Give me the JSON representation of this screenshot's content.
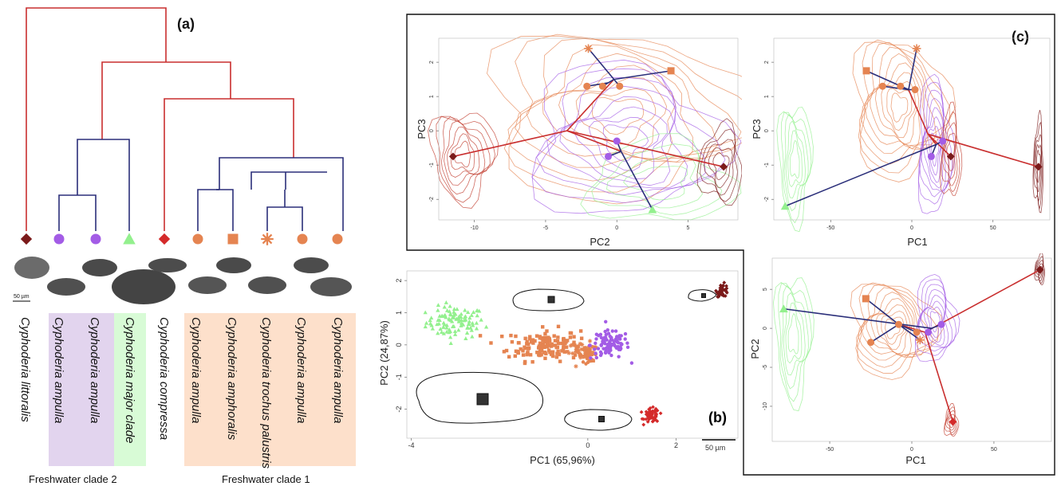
{
  "panel_labels": {
    "a": "(a)",
    "b": "(b)",
    "c": "(c)"
  },
  "colors": {
    "red_branch": "#c92f2f",
    "blue_branch": "#2b2f7a",
    "dark_red": "#7b1a1a",
    "red": "#d42a2a",
    "purple": "#a35ce6",
    "green": "#93f08e",
    "orange": "#e58451",
    "clade2_band": "#e2d4ee",
    "major_band": "#d8fbd6",
    "clade1_band": "#fde0cb"
  },
  "tree": {
    "tips": [
      {
        "species": "Cyphoderia littoralis",
        "symbol": "diamond",
        "color": "#7b1a1a"
      },
      {
        "species": "Cyphoderia ampulla",
        "symbol": "circle",
        "color": "#a35ce6"
      },
      {
        "species": "Cyphoderia ampulla",
        "symbol": "circle",
        "color": "#a35ce6"
      },
      {
        "species": "Cyphoderia major clade",
        "symbol": "triangle",
        "color": "#93f08e"
      },
      {
        "species": "Cyphoderia compressa",
        "symbol": "diamond",
        "color": "#d42a2a"
      },
      {
        "species": "Cyphoderia ampulla",
        "symbol": "circle",
        "color": "#e58451"
      },
      {
        "species": "Cyphoderia amphoralis",
        "symbol": "square",
        "color": "#e58451"
      },
      {
        "species": "Cyphoderia trochus palustris",
        "symbol": "asterisk",
        "color": "#e58451"
      },
      {
        "species": "Cyphoderia ampulla",
        "symbol": "circle",
        "color": "#e58451"
      },
      {
        "species": "Cyphoderia ampulla",
        "symbol": "circle",
        "color": "#e58451"
      }
    ],
    "scale_bar": "50 µm"
  },
  "clades": {
    "clade2": "Freshwater clade 2",
    "clade1": "Freshwater clade 1"
  },
  "chart_data": [
    {
      "type": "scatter",
      "panel": "(b)",
      "xlabel": "PC1 (65,96%)",
      "ylabel": "PC2 (24,87%)",
      "xlim": [
        -4.1,
        3.4
      ],
      "ylim": [
        -2.9,
        2.3
      ],
      "xticks": [
        -4,
        0,
        2
      ],
      "yticks": [
        -2,
        -1,
        0,
        1,
        2
      ],
      "scale_bar": "50 µm",
      "series": [
        {
          "color": "#93f08e",
          "marker": "triangle",
          "center": [
            -3.0,
            0.7
          ],
          "spread": [
            0.6,
            0.45
          ],
          "n": 100
        },
        {
          "color": "#e58451",
          "marker": "square",
          "center": [
            -1.0,
            0.0
          ],
          "spread": [
            0.75,
            0.45
          ],
          "n": 150
        },
        {
          "color": "#e58451",
          "marker": "asterisk",
          "center": [
            -0.1,
            -0.2
          ],
          "spread": [
            0.3,
            0.25
          ],
          "n": 30
        },
        {
          "color": "#e58451",
          "marker": "circle",
          "center": [
            0.0,
            -0.3
          ],
          "spread": [
            0.2,
            0.2
          ],
          "n": 30
        },
        {
          "color": "#a35ce6",
          "marker": "circle",
          "center": [
            0.5,
            0.0
          ],
          "spread": [
            0.4,
            0.4
          ],
          "n": 100
        },
        {
          "color": "#d42a2a",
          "marker": "diamond",
          "center": [
            1.45,
            -2.2
          ],
          "spread": [
            0.15,
            0.2
          ],
          "n": 60
        },
        {
          "color": "#7b1a1a",
          "marker": "diamond",
          "center": [
            3.05,
            1.7
          ],
          "spread": [
            0.12,
            0.18
          ],
          "n": 40
        }
      ]
    },
    {
      "type": "line",
      "panel": "(c) top-left",
      "xlabel": "PC2",
      "ylabel": "PC3",
      "xlim": [
        -12.5,
        8.5
      ],
      "ylim": [
        -2.6,
        2.7
      ],
      "xticks": [
        -10,
        -5,
        0,
        5
      ],
      "yticks": [
        2,
        1,
        0,
        -1,
        -2
      ],
      "nodes": [
        {
          "id": "root",
          "x": -3.5,
          "y": 0.0
        },
        {
          "id": "n1",
          "x": 0.0,
          "y": 0.3
        },
        {
          "id": "n2",
          "x": 0.0,
          "y": 1.2
        },
        {
          "id": "n3",
          "x": -0.2,
          "y": 1.5
        },
        {
          "id": "n4",
          "x": 0.3,
          "y": -0.6
        },
        {
          "id": "n5",
          "x": -0.6,
          "y": 1.4
        }
      ],
      "tips": [
        {
          "x": -11.5,
          "y": -0.75,
          "marker": "diamond",
          "color": "#7b1a1a"
        },
        {
          "x": 7.5,
          "y": -1.05,
          "marker": "diamond",
          "color": "#7b1a1a"
        },
        {
          "x": 2.5,
          "y": -2.3,
          "marker": "triangle",
          "color": "#93f08e"
        },
        {
          "x": 0.0,
          "y": -0.3,
          "marker": "circle",
          "color": "#a35ce6"
        },
        {
          "x": -0.6,
          "y": -0.75,
          "marker": "circle",
          "color": "#a35ce6"
        },
        {
          "x": -2.0,
          "y": 2.4,
          "marker": "asterisk",
          "color": "#e58451"
        },
        {
          "x": 3.8,
          "y": 1.75,
          "marker": "square",
          "color": "#e58451"
        },
        {
          "x": -2.1,
          "y": 1.3,
          "marker": "circle",
          "color": "#e58451"
        },
        {
          "x": -1.0,
          "y": 1.3,
          "marker": "circle",
          "color": "#e58451"
        },
        {
          "x": 0.2,
          "y": 1.3,
          "marker": "circle",
          "color": "#e58451"
        }
      ],
      "edges": [
        {
          "from": [
            -3.5,
            0.0
          ],
          "to": [
            -11.5,
            -0.75
          ],
          "color": "red"
        },
        {
          "from": [
            -3.5,
            0.0
          ],
          "to": [
            7.5,
            -1.05
          ],
          "color": "red"
        },
        {
          "from": [
            -3.5,
            0.0
          ],
          "to": [
            -0.2,
            1.5
          ],
          "color": "red"
        },
        {
          "from": [
            -3.5,
            0.0
          ],
          "to": [
            0.3,
            -0.6
          ],
          "color": "red"
        },
        {
          "from": [
            0.3,
            -0.6
          ],
          "to": [
            2.5,
            -2.3
          ],
          "color": "blue"
        },
        {
          "from": [
            0.3,
            -0.6
          ],
          "to": [
            0.0,
            -0.3
          ],
          "color": "blue"
        },
        {
          "from": [
            0.3,
            -0.6
          ],
          "to": [
            -0.6,
            -0.75
          ],
          "color": "blue"
        },
        {
          "from": [
            -0.2,
            1.5
          ],
          "to": [
            -2.0,
            2.4
          ],
          "color": "blue"
        },
        {
          "from": [
            -0.2,
            1.5
          ],
          "to": [
            3.8,
            1.75
          ],
          "color": "blue"
        },
        {
          "from": [
            -0.2,
            1.5
          ],
          "to": [
            -0.6,
            1.4
          ],
          "color": "blue"
        },
        {
          "from": [
            -0.6,
            1.4
          ],
          "to": [
            -2.1,
            1.3
          ],
          "color": "blue"
        },
        {
          "from": [
            -0.6,
            1.4
          ],
          "to": [
            -1.0,
            1.3
          ],
          "color": "blue"
        },
        {
          "from": [
            -0.2,
            1.5
          ],
          "to": [
            0.2,
            1.3
          ],
          "color": "blue"
        }
      ]
    },
    {
      "type": "line",
      "panel": "(c) top-right",
      "xlabel": "PC1",
      "ylabel": "PC3",
      "xlim": [
        -85,
        85
      ],
      "ylim": [
        -2.6,
        2.7
      ],
      "xticks": [
        -50,
        0,
        50
      ],
      "yticks": [
        2,
        1,
        0,
        -1,
        -2
      ],
      "tips": [
        {
          "x": -78,
          "y": -2.2,
          "marker": "triangle",
          "color": "#93f08e"
        },
        {
          "x": 78,
          "y": -1.05,
          "marker": "diamond",
          "color": "#7b1a1a"
        },
        {
          "x": 24,
          "y": -0.75,
          "marker": "diamond",
          "color": "#7b1a1a"
        },
        {
          "x": 19,
          "y": -0.3,
          "marker": "circle",
          "color": "#a35ce6"
        },
        {
          "x": 12,
          "y": -0.75,
          "marker": "circle",
          "color": "#a35ce6"
        },
        {
          "x": 3,
          "y": 2.4,
          "marker": "asterisk",
          "color": "#e58451"
        },
        {
          "x": -28,
          "y": 1.75,
          "marker": "square",
          "color": "#e58451"
        },
        {
          "x": -18,
          "y": 1.3,
          "marker": "circle",
          "color": "#e58451"
        },
        {
          "x": -7,
          "y": 1.3,
          "marker": "circle",
          "color": "#e58451"
        },
        {
          "x": 2,
          "y": 1.2,
          "marker": "circle",
          "color": "#e58451"
        }
      ],
      "edges": [
        {
          "from": [
            10,
            -0.1
          ],
          "to": [
            78,
            -1.05
          ],
          "color": "red"
        },
        {
          "from": [
            10,
            -0.1
          ],
          "to": [
            24,
            -0.75
          ],
          "color": "red"
        },
        {
          "from": [
            10,
            -0.1
          ],
          "to": [
            -2,
            1.2
          ],
          "color": "red"
        },
        {
          "from": [
            10,
            -0.1
          ],
          "to": [
            15,
            -0.4
          ],
          "color": "red"
        },
        {
          "from": [
            15,
            -0.4
          ],
          "to": [
            -78,
            -2.2
          ],
          "color": "blue"
        },
        {
          "from": [
            15,
            -0.4
          ],
          "to": [
            19,
            -0.3
          ],
          "color": "blue"
        },
        {
          "from": [
            15,
            -0.4
          ],
          "to": [
            12,
            -0.75
          ],
          "color": "blue"
        },
        {
          "from": [
            -2,
            1.2
          ],
          "to": [
            3,
            2.4
          ],
          "color": "blue"
        },
        {
          "from": [
            -2,
            1.2
          ],
          "to": [
            -28,
            1.75
          ],
          "color": "blue"
        },
        {
          "from": [
            -2,
            1.2
          ],
          "to": [
            -18,
            1.3
          ],
          "color": "blue"
        },
        {
          "from": [
            -2,
            1.2
          ],
          "to": [
            -7,
            1.3
          ],
          "color": "blue"
        },
        {
          "from": [
            -2,
            1.2
          ],
          "to": [
            2,
            1.2
          ],
          "color": "blue"
        }
      ]
    },
    {
      "type": "line",
      "panel": "(c) bottom",
      "xlabel": "PC1",
      "ylabel": "PC2",
      "xlim": [
        -85,
        85
      ],
      "ylim": [
        -14.5,
        9
      ],
      "xticks": [
        -50,
        0,
        50
      ],
      "yticks": [
        5,
        0,
        -5,
        -10
      ],
      "tips": [
        {
          "x": -78,
          "y": 2.5,
          "marker": "triangle",
          "color": "#93f08e"
        },
        {
          "x": 78,
          "y": 7.5,
          "marker": "diamond",
          "color": "#7b1a1a"
        },
        {
          "x": 25,
          "y": -12,
          "marker": "diamond",
          "color": "#d42a2a"
        },
        {
          "x": 18,
          "y": 0.5,
          "marker": "circle",
          "color": "#a35ce6"
        },
        {
          "x": 10,
          "y": -0.5,
          "marker": "circle",
          "color": "#a35ce6"
        },
        {
          "x": -28,
          "y": 3.8,
          "marker": "square",
          "color": "#e58451"
        },
        {
          "x": -25,
          "y": -1.8,
          "marker": "circle",
          "color": "#e58451"
        },
        {
          "x": -8,
          "y": 0.5,
          "marker": "circle",
          "color": "#e58451"
        },
        {
          "x": 3,
          "y": -0.5,
          "marker": "circle",
          "color": "#e58451"
        },
        {
          "x": 5,
          "y": -1.5,
          "marker": "asterisk",
          "color": "#e58451"
        }
      ],
      "edges": [
        {
          "from": [
            8,
            -0.5
          ],
          "to": [
            78,
            7.5
          ],
          "color": "red"
        },
        {
          "from": [
            8,
            -0.5
          ],
          "to": [
            25,
            -12
          ],
          "color": "red"
        },
        {
          "from": [
            8,
            -0.5
          ],
          "to": [
            -8,
            0.5
          ],
          "color": "red"
        },
        {
          "from": [
            8,
            -0.5
          ],
          "to": [
            12,
            0.0
          ],
          "color": "red"
        },
        {
          "from": [
            12,
            0.0
          ],
          "to": [
            -78,
            2.5
          ],
          "color": "blue"
        },
        {
          "from": [
            12,
            0.0
          ],
          "to": [
            18,
            0.5
          ],
          "color": "blue"
        },
        {
          "from": [
            12,
            0.0
          ],
          "to": [
            10,
            -0.5
          ],
          "color": "blue"
        },
        {
          "from": [
            -8,
            0.5
          ],
          "to": [
            -28,
            3.8
          ],
          "color": "blue"
        },
        {
          "from": [
            -8,
            0.5
          ],
          "to": [
            -25,
            -1.8
          ],
          "color": "blue"
        },
        {
          "from": [
            -8,
            0.5
          ],
          "to": [
            3,
            -0.5
          ],
          "color": "blue"
        },
        {
          "from": [
            -8,
            0.5
          ],
          "to": [
            5,
            -1.5
          ],
          "color": "blue"
        }
      ]
    }
  ]
}
